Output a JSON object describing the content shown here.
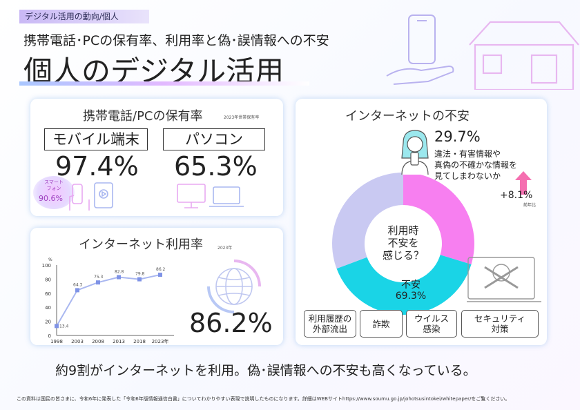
{
  "header": {
    "category_tag": "デジタル活用の動向/個人",
    "subtitle": "携帯電話･PCの保有率、利用率と偽･誤情報への不安",
    "title": "個人のデジタル活用"
  },
  "ownership": {
    "title": "携帯電話/PCの保有率",
    "note": "2023年世帯保有率",
    "mobile_label": "モバイル端末",
    "mobile_value": "97.4%",
    "pc_label": "パソコン",
    "pc_value": "65.3%",
    "smartphone_label_line1": "スマート",
    "smartphone_label_line2": "フォン",
    "smartphone_value": "90.6%"
  },
  "internet_usage": {
    "title": "インターネット利用率",
    "note": "2023年",
    "big_value": "86.2%",
    "y_unit": "%",
    "y_ticks": [
      "100",
      "80",
      "60",
      "40",
      "20",
      "0"
    ],
    "x_extra_label": "2023年"
  },
  "chart_data": {
    "type": "line",
    "x": [
      "1998",
      "2003",
      "2008",
      "2013",
      "2018",
      "2023"
    ],
    "values": [
      13.4,
      64.3,
      75.3,
      82.8,
      79.8,
      86.2
    ],
    "data_labels": [
      "13.4",
      "64.3",
      "75.3",
      "82.8",
      "79.8",
      "86.2"
    ],
    "ylim": [
      0,
      100
    ],
    "ylabel": "%"
  },
  "anxiety": {
    "title": "インターネットの不安",
    "center_line1": "利用時",
    "center_line2": "不安を",
    "center_line3": "感じる？",
    "anxious_label": "不安",
    "anxious_value": "69.3%",
    "anxious_fraction": 0.693,
    "misinfo_fraction": 0.297,
    "misinfo_value": "29.7%",
    "misinfo_line1": "違法・有害情報や",
    "misinfo_line2": "真偽の不確かな情報を",
    "misinfo_line3": "見てしまわないか",
    "change_value": "+8.1%",
    "change_note": "前年比",
    "colors": {
      "anxious": "#1ad4e6",
      "misinfo": "#f77ff0",
      "other": "#c9c9f2",
      "arrow": "#f56fb0"
    },
    "factors": [
      {
        "line1": "利用履歴の",
        "line2": "外部流出"
      },
      {
        "line1": "詐欺",
        "line2": ""
      },
      {
        "line1": "ウイルス",
        "line2": "感染"
      },
      {
        "line1": "セキュリティ",
        "line2": "対策"
      }
    ]
  },
  "conclusion": "約9割がインターネットを利用。偽･誤情報への不安も高くなっている。",
  "footer": "この資料は国民の皆さまに、令和6年に発表した「令和6年版情報通信白書」についてわかりやすい表現で説明したものになります。詳細はWEBサイトhttps://www.soumu.go.jp/johotsusintokei/whitepaper/をご覧ください。"
}
